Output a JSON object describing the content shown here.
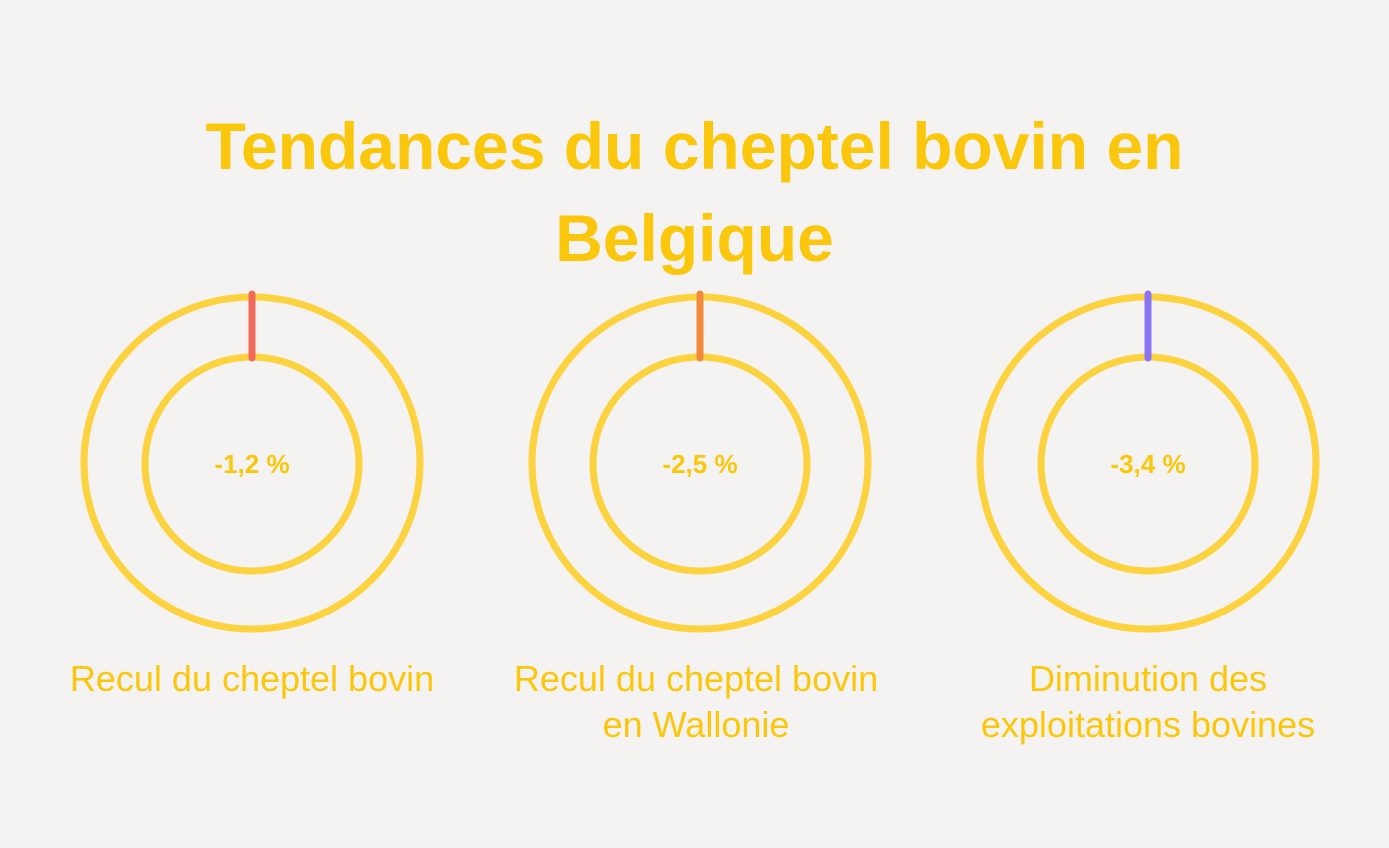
{
  "title": [
    "Tendances du cheptel bovin en",
    "Belgique"
  ],
  "colors": {
    "background": "#f4f3f1",
    "text": "#fbc70c",
    "ring": "#fcd23e"
  },
  "chart_data": {
    "type": "pie",
    "items": [
      {
        "value": -1.2,
        "unit": "%",
        "label_text": "-1,2 %",
        "caption": [
          "Recul du cheptel bovin"
        ],
        "accent": "#f26a5c"
      },
      {
        "value": -2.5,
        "unit": "%",
        "label_text": "-2,5 %",
        "caption": [
          "Recul du cheptel bovin",
          "en Wallonie"
        ],
        "accent": "#f28a3c"
      },
      {
        "value": -3.4,
        "unit": "%",
        "label_text": "-3,4 %",
        "caption": [
          "Diminution des",
          "exploitations bovines"
        ],
        "accent": "#8a74f5"
      }
    ]
  }
}
